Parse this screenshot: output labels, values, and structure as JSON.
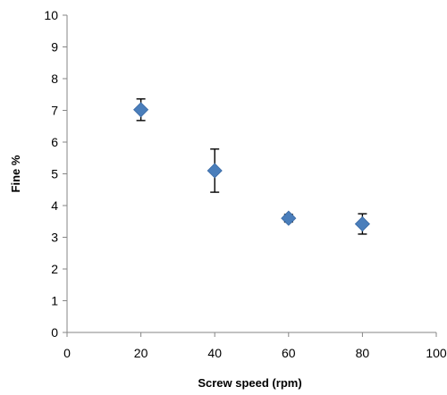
{
  "chart_data": {
    "type": "scatter",
    "title": "",
    "xlabel": "Screw speed (rpm)",
    "ylabel": "Fine %",
    "xlim": [
      0,
      100
    ],
    "ylim": [
      0,
      10
    ],
    "xticks": [
      0,
      20,
      40,
      60,
      80,
      100
    ],
    "yticks": [
      0,
      1,
      2,
      3,
      4,
      5,
      6,
      7,
      8,
      9,
      10
    ],
    "grid": false,
    "legend": "none",
    "marker": "diamond",
    "marker_color": "#4a7ebb",
    "series": [
      {
        "x": [
          20,
          40,
          60,
          80
        ],
        "y": [
          7.02,
          5.1,
          3.6,
          3.42
        ],
        "error_low": [
          6.68,
          4.42,
          3.48,
          3.1
        ],
        "error_high": [
          7.36,
          5.78,
          3.72,
          3.74
        ]
      }
    ]
  }
}
